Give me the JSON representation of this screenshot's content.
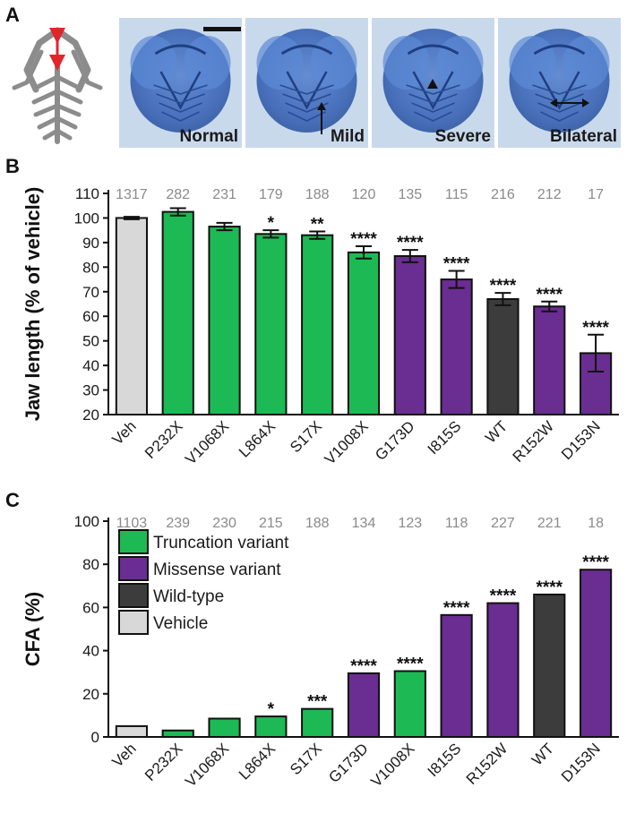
{
  "colors": {
    "truncation": "#1db954",
    "missense": "#6a2d91",
    "wildtype": "#3c3c3c",
    "vehicle": "#d8d8d8",
    "stain": "#3f6fc0",
    "photo_bg": "#c9d9ec",
    "arrow_red": "#e0262b",
    "skeleton": "#8c8c8c"
  },
  "panel_a": {
    "label": "A",
    "photos": [
      {
        "caption": "Normal",
        "mark": "none"
      },
      {
        "caption": "Mild",
        "mark": "up-arrow"
      },
      {
        "caption": "Severe",
        "mark": "triangle"
      },
      {
        "caption": "Bilateral",
        "mark": "double-arrow"
      }
    ]
  },
  "chart_data": [
    {
      "panel": "B",
      "type": "bar",
      "ylabel": "Jaw length (% of vehicle)",
      "ylim": [
        20,
        110
      ],
      "yticks": [
        20,
        30,
        40,
        50,
        60,
        70,
        80,
        90,
        100,
        110
      ],
      "categories": [
        "Veh",
        "P232X",
        "V1068X",
        "L864X",
        "S17X",
        "V1008X",
        "G173D",
        "I815S",
        "WT",
        "R152W",
        "D153N"
      ],
      "n": [
        "1317",
        "282",
        "231",
        "179",
        "188",
        "120",
        "135",
        "115",
        "216",
        "212",
        "17"
      ],
      "values": [
        100,
        102.5,
        96.5,
        93.5,
        93,
        86,
        84.5,
        75,
        67,
        64,
        45
      ],
      "errors": [
        0.5,
        1.5,
        1.5,
        1.5,
        1.5,
        2.5,
        2.5,
        3.5,
        2.5,
        2,
        7.5
      ],
      "groups": [
        "vehicle",
        "truncation",
        "truncation",
        "truncation",
        "truncation",
        "truncation",
        "missense",
        "missense",
        "wildtype",
        "missense",
        "missense"
      ],
      "significance": [
        "",
        "",
        "",
        "*",
        "**",
        "****",
        "****",
        "****",
        "****",
        "****",
        "****"
      ],
      "grid": false
    },
    {
      "panel": "C",
      "type": "bar",
      "ylabel": "CFA (%)",
      "ylim": [
        0,
        100
      ],
      "yticks": [
        0,
        20,
        40,
        60,
        80,
        100
      ],
      "categories": [
        "Veh",
        "P232X",
        "V1068X",
        "L864X",
        "S17X",
        "G173D",
        "V1008X",
        "I815S",
        "R152W",
        "WT",
        "D153N"
      ],
      "n": [
        "1103",
        "239",
        "230",
        "215",
        "188",
        "134",
        "123",
        "118",
        "227",
        "221",
        "18"
      ],
      "values": [
        5,
        3,
        8.5,
        9.5,
        13,
        29.5,
        30.5,
        56.5,
        62,
        66,
        77.5
      ],
      "groups": [
        "vehicle",
        "truncation",
        "truncation",
        "truncation",
        "truncation",
        "missense",
        "truncation",
        "missense",
        "missense",
        "wildtype",
        "missense"
      ],
      "significance": [
        "",
        "",
        "",
        "*",
        "***",
        "****",
        "****",
        "****",
        "****",
        "****",
        "****"
      ],
      "legend": [
        {
          "label": "Truncation variant",
          "group": "truncation"
        },
        {
          "label": "Missense variant",
          "group": "missense"
        },
        {
          "label": "Wild-type",
          "group": "wildtype"
        },
        {
          "label": "Vehicle",
          "group": "vehicle"
        }
      ],
      "legend_position": "top-left",
      "grid": false
    }
  ]
}
